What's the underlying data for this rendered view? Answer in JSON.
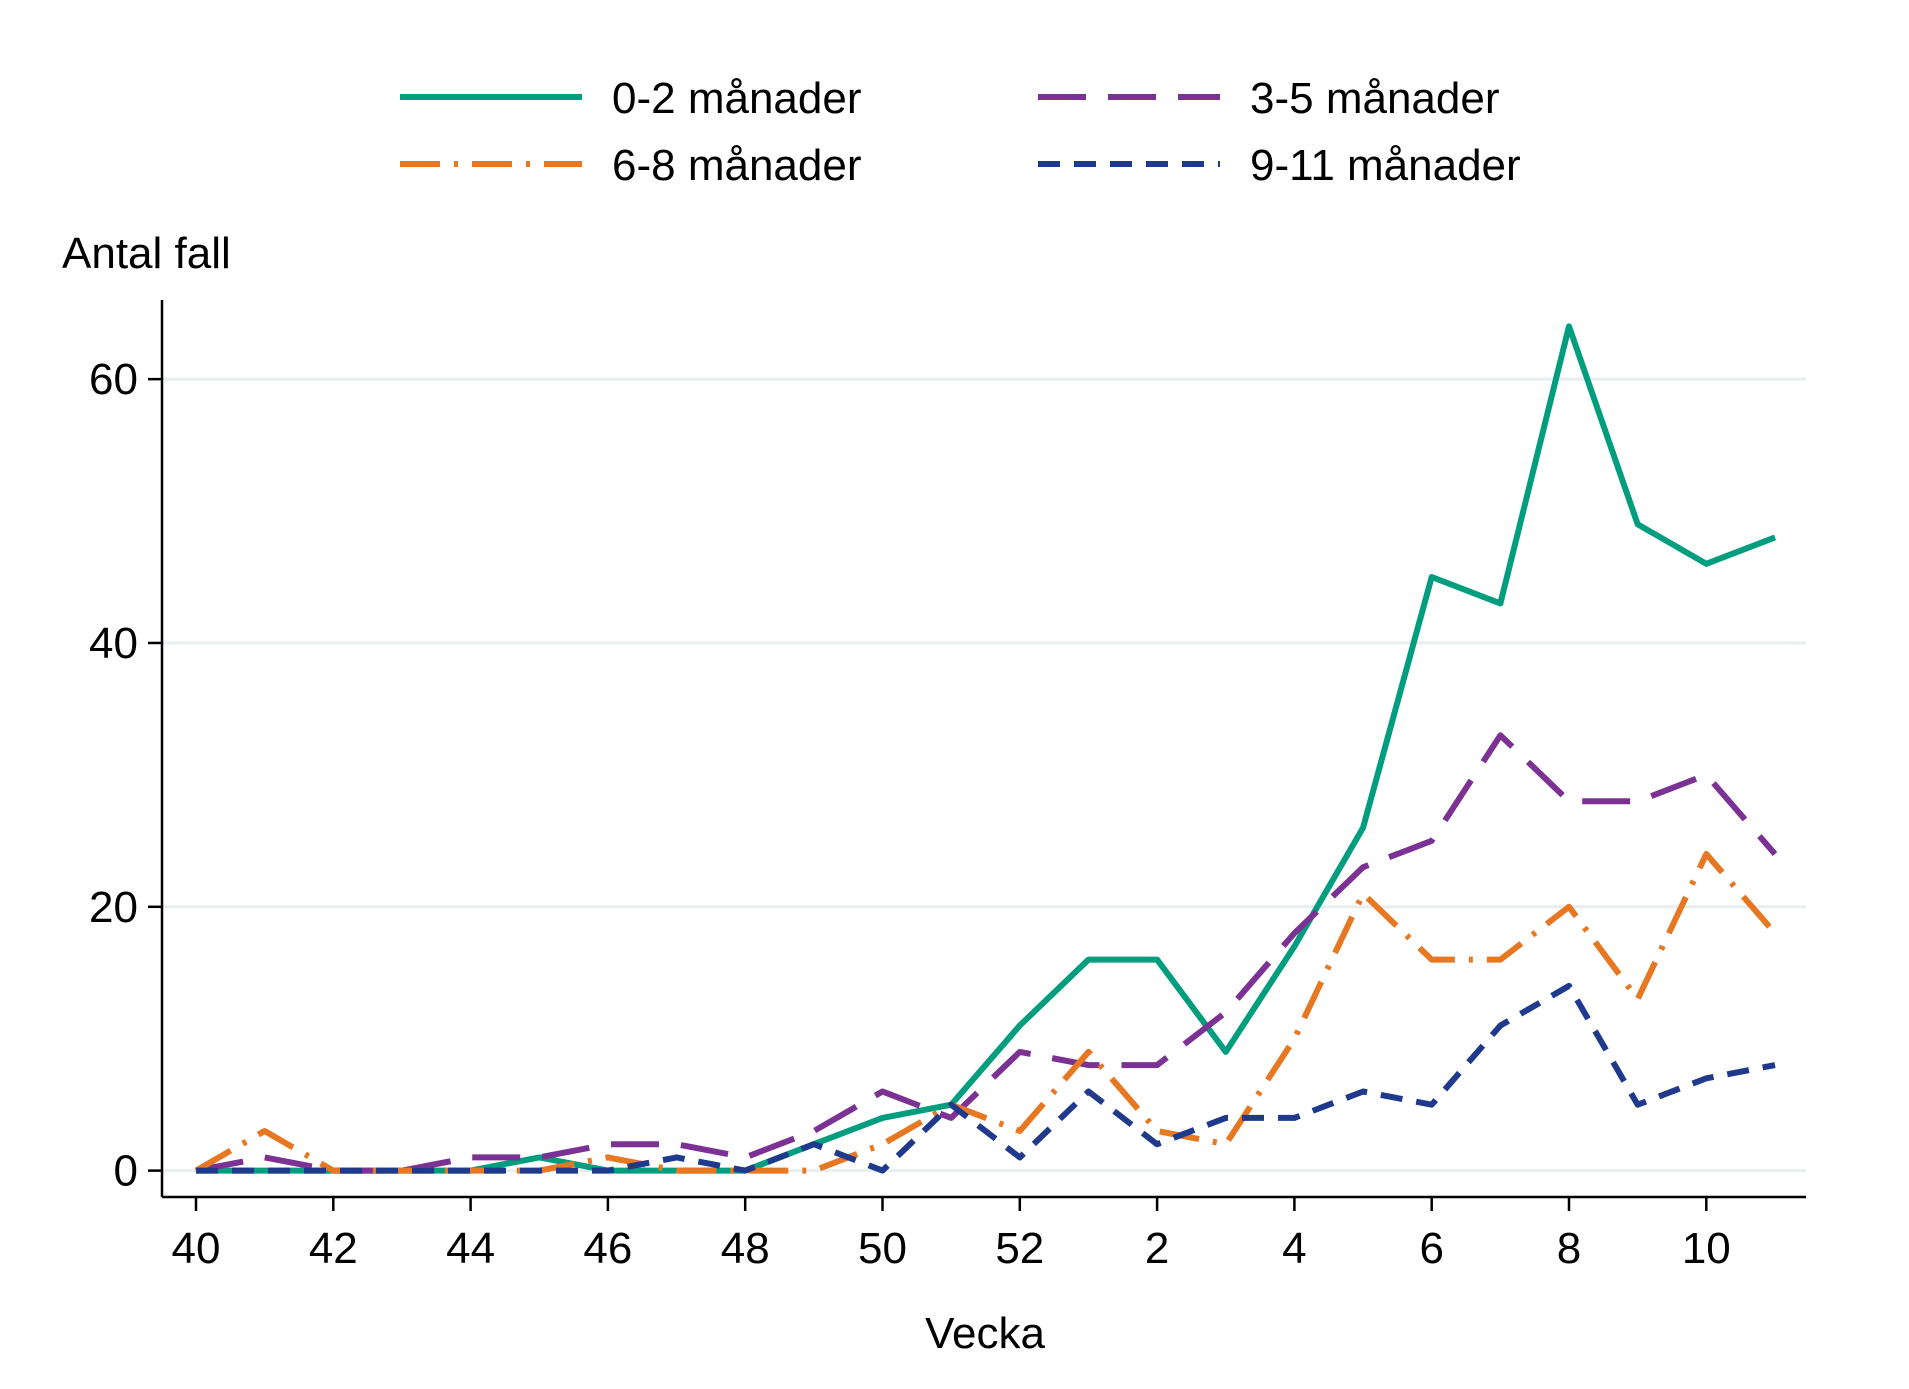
{
  "chart_data": {
    "type": "line",
    "ylabel": "Antal fall",
    "xlabel": "Vecka",
    "x": [
      "40",
      "41",
      "42",
      "43",
      "44",
      "45",
      "46",
      "47",
      "48",
      "49",
      "50",
      "51",
      "52",
      "1",
      "2",
      "3",
      "4",
      "5",
      "6",
      "7",
      "8",
      "9",
      "10",
      "11"
    ],
    "x_tick_labels": [
      "40",
      "42",
      "44",
      "46",
      "48",
      "50",
      "52",
      "2",
      "4",
      "6",
      "8",
      "10"
    ],
    "y_ticks": [
      0,
      20,
      40,
      60
    ],
    "ylim": [
      -2,
      66
    ],
    "grid": true,
    "legend_position": "top",
    "series": [
      {
        "name": "0-2 månader",
        "color": "#009E7E",
        "dash": "solid",
        "values": [
          0,
          0,
          0,
          0,
          0,
          1,
          0,
          0,
          0,
          2,
          4,
          5,
          11,
          16,
          16,
          9,
          17,
          26,
          45,
          43,
          64,
          49,
          46,
          48
        ]
      },
      {
        "name": "3-5 månader",
        "color": "#7B3294",
        "dash": "long-dash",
        "values": [
          0,
          1,
          0,
          0,
          1,
          1,
          2,
          2,
          1,
          3,
          6,
          4,
          9,
          8,
          8,
          12,
          18,
          23,
          25,
          33,
          28,
          28,
          30,
          24
        ]
      },
      {
        "name": "6-8 månader",
        "color": "#E87722",
        "dash": "dash-dot",
        "values": [
          0,
          3,
          0,
          0,
          0,
          0,
          1,
          0,
          0,
          0,
          2,
          5,
          3,
          9,
          3,
          2,
          10,
          21,
          16,
          16,
          20,
          13,
          24,
          18
        ]
      },
      {
        "name": "9-11 månader",
        "color": "#1F3A8C",
        "dash": "short-dash",
        "values": [
          0,
          0,
          0,
          0,
          0,
          0,
          0,
          1,
          0,
          2,
          0,
          5,
          1,
          6,
          2,
          4,
          4,
          6,
          5,
          11,
          14,
          5,
          7,
          8
        ]
      }
    ]
  }
}
